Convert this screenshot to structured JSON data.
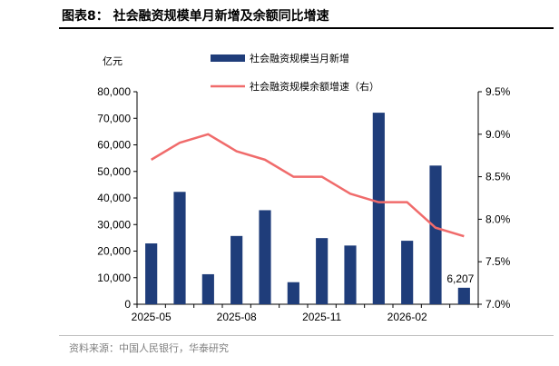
{
  "header": {
    "title": "图表8：  社会融资规模单月新增及余额同比增速"
  },
  "source": {
    "text": "资料来源：中国人民银行，华泰研究"
  },
  "chart_data": {
    "type": "bar",
    "x_ticks": [
      "2025-05",
      "2025-08",
      "2025-11",
      "2026-02"
    ],
    "categories": [
      "2025-05",
      "2025-06",
      "2025-07",
      "2025-08",
      "2025-09",
      "2025-10",
      "2025-11",
      "2025-12",
      "2026-01",
      "2026-02",
      "2026-03",
      "2026-04"
    ],
    "left_axis": {
      "unit_label": "亿元",
      "ylim": [
        0,
        80000
      ],
      "ticks": [
        "0",
        "10,000",
        "20,000",
        "30,000",
        "40,000",
        "50,000",
        "60,000",
        "70,000",
        "80,000"
      ]
    },
    "right_axis": {
      "ylim": [
        7.0,
        9.5
      ],
      "ticks": [
        "7.0%",
        "7.5%",
        "8.0%",
        "8.5%",
        "9.0%",
        "9.5%"
      ]
    },
    "series": [
      {
        "name": "社会融资规模当月新增",
        "type": "bar",
        "axis": "left",
        "color": "#1f3d7a",
        "values": [
          22900,
          42300,
          11300,
          25700,
          35400,
          8300,
          24900,
          22100,
          72100,
          23900,
          52200,
          6207
        ]
      },
      {
        "name": "社会融资规模余额增速（右）",
        "type": "line",
        "axis": "right",
        "color": "#f06b6b",
        "values": [
          8.7,
          8.9,
          9.0,
          8.8,
          8.7,
          8.5,
          8.5,
          8.3,
          8.2,
          8.2,
          7.9,
          7.8
        ]
      }
    ],
    "annotations": [
      {
        "category": "2026-04",
        "text": "6,207"
      }
    ],
    "grid": false,
    "legend": "top-center"
  }
}
